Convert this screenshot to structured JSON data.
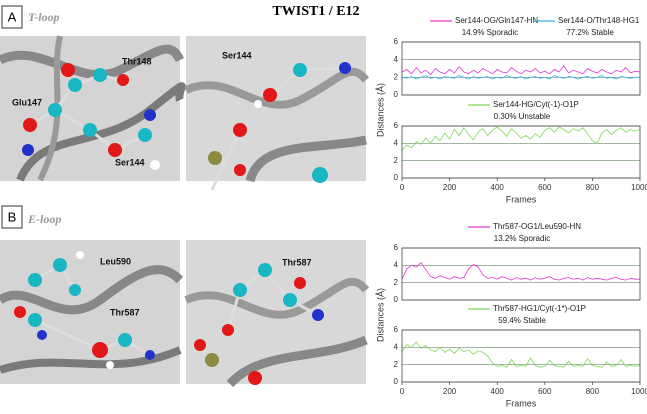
{
  "title": "TWIST1 / E12",
  "panels": [
    {
      "label": "A",
      "name": "T-loop",
      "images": [
        [
          "Thr148",
          "Glu147",
          "Ser144"
        ],
        [
          "Ser144"
        ]
      ]
    },
    {
      "label": "B",
      "name": "E-loop",
      "images": [
        [
          "Leu590",
          "Thr587"
        ],
        [
          "Thr587"
        ]
      ]
    }
  ],
  "chart_data": [
    {
      "type": "line",
      "ylabel": "Distances (Å)",
      "xlim": [
        0,
        1000
      ],
      "ylim": [
        0,
        6
      ],
      "yticks": [
        0,
        2,
        4,
        6
      ],
      "x": [
        0,
        20,
        40,
        60,
        80,
        100,
        120,
        140,
        160,
        180,
        200,
        220,
        240,
        260,
        280,
        300,
        320,
        340,
        360,
        380,
        400,
        420,
        440,
        460,
        480,
        500,
        520,
        540,
        560,
        580,
        600,
        620,
        640,
        660,
        680,
        700,
        720,
        740,
        760,
        780,
        800,
        820,
        840,
        860,
        880,
        900,
        920,
        940,
        960,
        980,
        1000
      ],
      "series": [
        {
          "name": "Ser144-OG/Gln147-HN",
          "annotation": "14.9% Sporadic",
          "color": "#e535d6",
          "values": [
            2.6,
            2.9,
            2.4,
            3.1,
            2.5,
            2.8,
            2.3,
            3.0,
            2.6,
            2.4,
            2.9,
            2.5,
            3.2,
            2.6,
            2.4,
            2.8,
            2.5,
            3.0,
            2.7,
            2.4,
            2.9,
            2.6,
            2.5,
            3.1,
            2.7,
            2.4,
            2.8,
            2.6,
            3.0,
            2.5,
            2.7,
            2.4,
            2.9,
            2.6,
            3.3,
            2.5,
            2.8,
            2.6,
            2.4,
            3.0,
            2.7,
            2.5,
            2.9,
            2.6,
            2.4,
            2.8,
            2.6,
            3.1,
            2.5,
            2.7,
            2.6
          ]
        },
        {
          "name": "Ser144-O/Thr148-HG1",
          "annotation": "77.2% Stable",
          "color": "#3ab0e8",
          "values": [
            2.0,
            1.9,
            2.1,
            1.8,
            2.0,
            2.2,
            1.9,
            2.0,
            1.8,
            2.1,
            2.0,
            1.9,
            2.2,
            2.0,
            1.8,
            2.1,
            1.9,
            2.0,
            2.1,
            1.8,
            2.0,
            1.9,
            2.2,
            2.0,
            1.9,
            2.1,
            1.8,
            2.0,
            2.1,
            1.9,
            2.0,
            1.8,
            2.2,
            2.0,
            1.9,
            2.1,
            2.0,
            1.8,
            2.0,
            2.1,
            1.9,
            2.0,
            2.2,
            1.9,
            2.0,
            1.8,
            2.1,
            2.0,
            1.9,
            2.0,
            2.0
          ]
        }
      ]
    },
    {
      "type": "line",
      "xlabel": "Frames",
      "xlim": [
        0,
        1000
      ],
      "ylim": [
        0,
        6
      ],
      "yticks": [
        0,
        2,
        4,
        6
      ],
      "xticks": [
        0,
        200,
        400,
        600,
        800,
        1000
      ],
      "x": [
        0,
        20,
        40,
        60,
        80,
        100,
        120,
        140,
        160,
        180,
        200,
        220,
        240,
        260,
        280,
        300,
        320,
        340,
        360,
        380,
        400,
        420,
        440,
        460,
        480,
        500,
        520,
        540,
        560,
        580,
        600,
        620,
        640,
        660,
        680,
        700,
        720,
        740,
        760,
        780,
        800,
        820,
        840,
        860,
        880,
        900,
        920,
        940,
        960,
        980,
        1000
      ],
      "series": [
        {
          "name": "Ser144-HG/Cyt(-1)-O1P",
          "annotation": "0.30% Unstable",
          "color": "#7ed957",
          "values": [
            3.2,
            3.8,
            3.5,
            4.2,
            3.9,
            4.6,
            4.0,
            4.8,
            4.3,
            5.2,
            4.5,
            5.6,
            4.9,
            5.8,
            5.0,
            4.4,
            5.3,
            5.7,
            4.9,
            5.5,
            5.9,
            5.4,
            4.8,
            5.7,
            5.2,
            4.6,
            4.9,
            4.5,
            5.1,
            4.7,
            5.5,
            5.8,
            5.3,
            5.9,
            5.6,
            5.2,
            5.7,
            5.4,
            5.8,
            5.1,
            4.3,
            4.0,
            5.2,
            5.6,
            5.0,
            5.5,
            5.8,
            5.3,
            5.6,
            5.4,
            5.6
          ]
        }
      ]
    },
    {
      "type": "line",
      "ylabel": "Distances (Å)",
      "xlim": [
        0,
        1000
      ],
      "ylim": [
        0,
        6
      ],
      "yticks": [
        0,
        2,
        4,
        6
      ],
      "x": [
        0,
        20,
        40,
        60,
        80,
        100,
        120,
        140,
        160,
        180,
        200,
        220,
        240,
        260,
        280,
        300,
        320,
        340,
        360,
        380,
        400,
        420,
        440,
        460,
        480,
        500,
        520,
        540,
        560,
        580,
        600,
        620,
        640,
        660,
        680,
        700,
        720,
        740,
        760,
        780,
        800,
        820,
        840,
        860,
        880,
        900,
        920,
        940,
        960,
        980,
        1000
      ],
      "series": [
        {
          "name": "Thr587-OG1/Leu590-HN",
          "annotation": "13.2% Sporadic",
          "color": "#e535d6",
          "values": [
            2.4,
            3.6,
            4.0,
            3.8,
            4.3,
            3.5,
            2.7,
            2.5,
            2.8,
            2.6,
            2.4,
            2.7,
            2.5,
            2.6,
            3.6,
            4.1,
            3.8,
            2.9,
            2.5,
            2.6,
            2.4,
            2.7,
            2.5,
            2.3,
            2.6,
            2.4,
            2.5,
            2.3,
            2.6,
            2.4,
            2.5,
            2.7,
            2.4,
            2.3,
            2.5,
            2.6,
            2.4,
            2.5,
            2.3,
            2.6,
            2.4,
            2.5,
            2.4,
            2.3,
            2.5,
            2.6,
            2.4,
            2.3,
            2.5,
            2.4,
            2.4
          ]
        }
      ]
    },
    {
      "type": "line",
      "xlabel": "Frames",
      "xlim": [
        0,
        1000
      ],
      "ylim": [
        0,
        6
      ],
      "yticks": [
        0,
        2,
        4,
        6
      ],
      "xticks": [
        0,
        200,
        400,
        600,
        800,
        1000
      ],
      "x": [
        0,
        20,
        40,
        60,
        80,
        100,
        120,
        140,
        160,
        180,
        200,
        220,
        240,
        260,
        280,
        300,
        320,
        340,
        360,
        380,
        400,
        420,
        440,
        460,
        480,
        500,
        520,
        540,
        560,
        580,
        600,
        620,
        640,
        660,
        680,
        700,
        720,
        740,
        760,
        780,
        800,
        820,
        840,
        860,
        880,
        900,
        920,
        940,
        960,
        980,
        1000
      ],
      "series": [
        {
          "name": "Thr587-HG1/Cyt(-1*)-O1P",
          "annotation": "59.4% Stable",
          "color": "#7ed957",
          "values": [
            3.5,
            4.3,
            4.0,
            4.6,
            3.9,
            4.2,
            3.7,
            3.5,
            4.0,
            3.4,
            3.8,
            3.3,
            3.9,
            3.5,
            3.7,
            3.2,
            3.6,
            3.4,
            3.0,
            2.2,
            1.8,
            1.9,
            1.7,
            2.6,
            1.8,
            1.9,
            1.8,
            2.8,
            1.9,
            1.7,
            1.8,
            2.5,
            1.9,
            1.8,
            1.7,
            2.4,
            1.8,
            1.9,
            1.8,
            2.7,
            1.9,
            1.8,
            1.7,
            2.3,
            1.8,
            1.9,
            2.6,
            1.8,
            1.9,
            1.8,
            1.9
          ]
        }
      ]
    }
  ]
}
